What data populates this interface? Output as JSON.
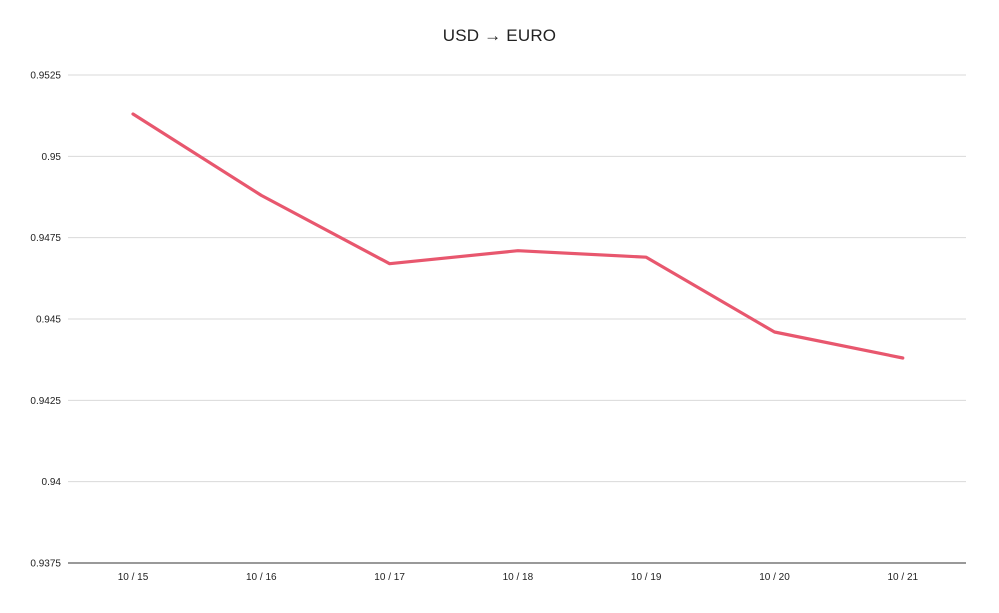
{
  "chart_data": {
    "type": "line",
    "title": "USD → EURO",
    "xlabel": "",
    "ylabel": "",
    "categories": [
      "10 / 15",
      "10 / 16",
      "10 / 17",
      "10 / 18",
      "10 / 19",
      "10 / 20",
      "10 / 21"
    ],
    "series": [
      {
        "values": [
          0.9513,
          0.9488,
          0.9467,
          0.9471,
          0.9469,
          0.9446,
          0.9438
        ],
        "color": "#e8576e"
      }
    ],
    "ylim": [
      0.9375,
      0.9525
    ],
    "yticks": [
      "0.9375",
      "0.94",
      "0.9425",
      "0.945",
      "0.9475",
      "0.95",
      "0.9525"
    ],
    "grid": true,
    "legend": "none"
  }
}
